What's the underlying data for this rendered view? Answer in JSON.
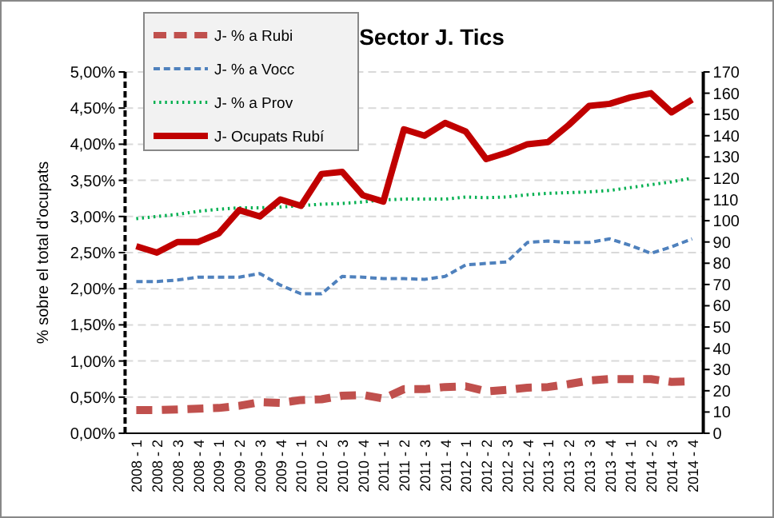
{
  "chart_data": {
    "type": "line",
    "title": "Sector J. Tics",
    "ylabel": "% sobre el total d'ocupats",
    "categories": [
      "2008 - 1",
      "2008 - 2",
      "2008 - 3",
      "2008 - 4",
      "2009 - 1",
      "2009 - 2",
      "2009 - 3",
      "2009 - 4",
      "2010 - 1",
      "2010 - 2",
      "2010 - 3",
      "2010 - 4",
      "2011 - 1",
      "2011 - 2",
      "2011 - 3",
      "2011 - 4",
      "2012 - 1",
      "2012 - 2",
      "2012 - 3",
      "2012 - 4",
      "2013 - 1",
      "2013 - 2",
      "2013 - 3",
      "2013 - 4",
      "2014 - 1",
      "2014 - 2",
      "2014 - 3",
      "2014 - 4"
    ],
    "series": [
      {
        "name": "J-  % a Rubi",
        "color": "#c0504d",
        "line_style": "dashed",
        "values": [
          0.32,
          0.32,
          0.33,
          0.34,
          0.35,
          0.38,
          0.43,
          0.42,
          0.46,
          0.47,
          0.52,
          0.53,
          0.48,
          0.61,
          0.61,
          0.64,
          0.65,
          0.58,
          0.6,
          0.63,
          0.64,
          0.68,
          0.73,
          0.75,
          0.75,
          0.75,
          0.71,
          0.72
        ]
      },
      {
        "name": "J-  % a Vocc",
        "color": "#4f81bd",
        "line_style": "dashed",
        "values": [
          2.1,
          2.1,
          2.12,
          2.16,
          2.16,
          2.16,
          2.21,
          2.05,
          1.93,
          1.93,
          2.17,
          2.16,
          2.14,
          2.14,
          2.13,
          2.17,
          2.33,
          2.35,
          2.37,
          2.64,
          2.66,
          2.64,
          2.64,
          2.69,
          2.6,
          2.49,
          2.58,
          2.69
        ]
      },
      {
        "name": "J-  % a Prov",
        "color": "#00b050",
        "line_style": "dotted",
        "values": [
          2.97,
          3.0,
          3.03,
          3.07,
          3.1,
          3.12,
          3.12,
          3.13,
          3.15,
          3.17,
          3.18,
          3.2,
          3.23,
          3.24,
          3.24,
          3.24,
          3.27,
          3.26,
          3.27,
          3.3,
          3.32,
          3.33,
          3.34,
          3.36,
          3.4,
          3.44,
          3.48,
          3.53
        ]
      },
      {
        "name": "J-  Ocupats Rubí",
        "color": "#c00000",
        "line_style": "solid",
        "axis": "y2",
        "values": [
          88,
          85,
          90,
          90,
          94,
          105,
          102,
          110,
          107,
          122,
          123,
          112,
          109,
          143,
          140,
          146,
          142,
          129,
          132,
          136,
          137,
          145,
          154,
          155,
          158,
          160,
          151,
          157
        ]
      }
    ],
    "ylim": [
      0,
      5
    ],
    "yticks": [
      {
        "value": 0,
        "label": "0,00%"
      },
      {
        "value": 0.5,
        "label": "0,50%"
      },
      {
        "value": 1,
        "label": "1,00%"
      },
      {
        "value": 1.5,
        "label": "1,50%"
      },
      {
        "value": 2,
        "label": "2,00%"
      },
      {
        "value": 2.5,
        "label": "2,50%"
      },
      {
        "value": 3,
        "label": "3,00%"
      },
      {
        "value": 3.5,
        "label": "3,50%"
      },
      {
        "value": 4,
        "label": "4,00%"
      },
      {
        "value": 4.5,
        "label": "4,50%"
      },
      {
        "value": 5,
        "label": "5,00%"
      }
    ],
    "y2lim": [
      0,
      170
    ],
    "y2ticks": [
      0,
      10,
      20,
      30,
      40,
      50,
      60,
      70,
      80,
      90,
      100,
      110,
      120,
      130,
      140,
      150,
      160,
      170
    ],
    "grid": "y",
    "legend": "top left",
    "marker": "none"
  }
}
